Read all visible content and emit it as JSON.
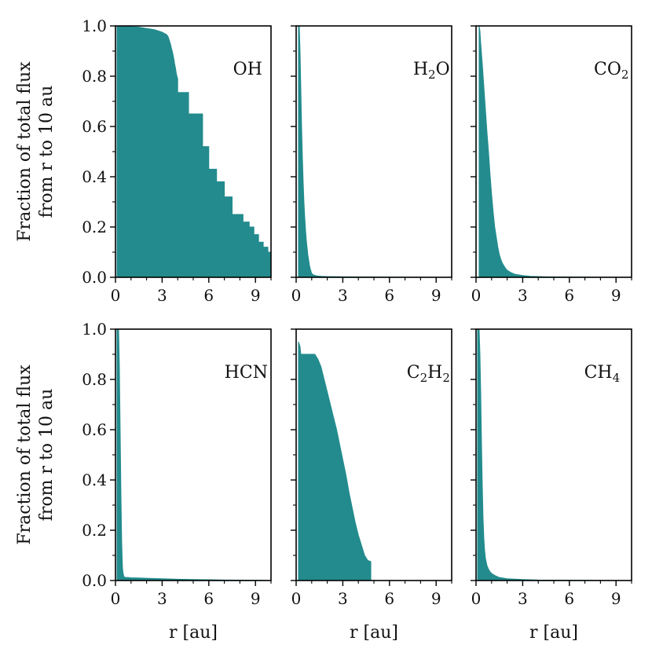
{
  "chart_data": {
    "type": "area",
    "fill_color": "#238b8d",
    "xlabel": "r [au]",
    "ylabel_lines": [
      "Fraction of total flux",
      "from r to 10 au"
    ],
    "xlim": [
      0,
      10
    ],
    "ylim": [
      0,
      1
    ],
    "xticks": [
      0,
      3,
      6,
      9
    ],
    "yticks": [
      0.0,
      0.2,
      0.4,
      0.6,
      0.8,
      1.0
    ],
    "ytick_labels": [
      "0.0",
      "0.2",
      "0.4",
      "0.6",
      "0.8",
      "1.0"
    ],
    "panels": [
      {
        "id": "oh",
        "label": [
          {
            "t": "OH"
          }
        ],
        "x": [
          0.1,
          0.1,
          1.5,
          2.0,
          2.5,
          3.0,
          3.3,
          3.4,
          3.45,
          3.5,
          3.55,
          3.6,
          3.65,
          3.7,
          3.75,
          3.8,
          3.85,
          3.9,
          3.95,
          4.0,
          4.0,
          4.7,
          4.7,
          5.6,
          5.6,
          6.0,
          6.0,
          6.5,
          6.5,
          7.0,
          7.0,
          7.5,
          7.5,
          8.2,
          8.2,
          8.6,
          8.6,
          8.9,
          8.9,
          9.2,
          9.2,
          9.5,
          9.5,
          9.8,
          9.8,
          10.0,
          10.0
        ],
        "y": [
          0.0,
          1.0,
          0.995,
          0.99,
          0.985,
          0.975,
          0.965,
          0.955,
          0.945,
          0.935,
          0.925,
          0.91,
          0.9,
          0.885,
          0.87,
          0.85,
          0.835,
          0.815,
          0.8,
          0.79,
          0.735,
          0.735,
          0.65,
          0.65,
          0.52,
          0.52,
          0.43,
          0.43,
          0.38,
          0.38,
          0.32,
          0.32,
          0.25,
          0.25,
          0.22,
          0.22,
          0.2,
          0.2,
          0.17,
          0.17,
          0.14,
          0.14,
          0.12,
          0.12,
          0.1,
          0.1,
          0.0
        ]
      },
      {
        "id": "h2o",
        "label": [
          {
            "t": "H"
          },
          {
            "t": "2",
            "sub": true
          },
          {
            "t": "O"
          }
        ],
        "x": [
          0.15,
          0.2,
          0.25,
          0.3,
          0.35,
          0.4,
          0.45,
          0.5,
          0.55,
          0.6,
          0.65,
          0.7,
          0.75,
          0.8,
          0.85,
          0.9,
          0.95,
          1.0,
          1.1,
          1.3,
          1.6,
          2.0,
          3.0,
          5.0,
          7.0,
          10.0,
          10.0
        ],
        "y": [
          1.0,
          1.0,
          0.9,
          0.75,
          0.6,
          0.48,
          0.38,
          0.3,
          0.24,
          0.19,
          0.15,
          0.12,
          0.09,
          0.07,
          0.05,
          0.035,
          0.025,
          0.015,
          0.01,
          0.006,
          0.004,
          0.003,
          0.002,
          0.001,
          0.0005,
          0.0,
          0.0
        ]
      },
      {
        "id": "co2",
        "label": [
          {
            "t": "CO"
          },
          {
            "t": "2",
            "sub": true
          }
        ],
        "x": [
          0.2,
          0.25,
          0.3,
          0.4,
          0.5,
          0.6,
          0.7,
          0.8,
          0.9,
          1.0,
          1.1,
          1.2,
          1.3,
          1.4,
          1.5,
          1.6,
          1.7,
          1.8,
          1.9,
          2.0,
          2.2,
          2.5,
          3.0,
          3.5,
          4.5,
          6.0,
          8.0,
          10.0,
          10.0
        ],
        "y": [
          1.0,
          0.98,
          0.93,
          0.85,
          0.76,
          0.67,
          0.58,
          0.5,
          0.41,
          0.33,
          0.26,
          0.2,
          0.16,
          0.12,
          0.09,
          0.07,
          0.055,
          0.045,
          0.035,
          0.028,
          0.02,
          0.012,
          0.007,
          0.004,
          0.002,
          0.001,
          0.0005,
          0.0,
          0.0
        ]
      },
      {
        "id": "hcn",
        "label": [
          {
            "t": "HCN"
          }
        ],
        "x": [
          0.1,
          0.2,
          0.25,
          0.3,
          0.35,
          0.4,
          0.45,
          0.5,
          0.55,
          0.6,
          0.7,
          0.8,
          1.0,
          1.5,
          2.0,
          3.0,
          4.0,
          5.0,
          6.0,
          7.0,
          8.0,
          9.0,
          10.0,
          10.0
        ],
        "y": [
          1.0,
          1.0,
          0.85,
          0.6,
          0.35,
          0.15,
          0.05,
          0.025,
          0.015,
          0.013,
          0.012,
          0.012,
          0.011,
          0.01,
          0.009,
          0.007,
          0.005,
          0.004,
          0.003,
          0.002,
          0.0015,
          0.001,
          0.0,
          0.0
        ]
      },
      {
        "id": "c2h2",
        "label": [
          {
            "t": "C"
          },
          {
            "t": "2",
            "sub": true
          },
          {
            "t": "H"
          },
          {
            "t": "2",
            "sub": true
          }
        ],
        "x": [
          0.15,
          0.15,
          0.25,
          0.3,
          1.2,
          1.4,
          1.6,
          1.8,
          2.0,
          2.2,
          2.4,
          2.6,
          2.8,
          3.0,
          3.2,
          3.4,
          3.6,
          3.8,
          4.0,
          4.2,
          4.4,
          4.6,
          4.8,
          4.8
        ],
        "y": [
          0.0,
          0.95,
          0.93,
          0.9,
          0.9,
          0.88,
          0.85,
          0.8,
          0.75,
          0.7,
          0.65,
          0.6,
          0.54,
          0.48,
          0.42,
          0.35,
          0.29,
          0.23,
          0.18,
          0.14,
          0.1,
          0.08,
          0.075,
          0.0
        ]
      },
      {
        "id": "ch4",
        "label": [
          {
            "t": "CH"
          },
          {
            "t": "4",
            "sub": true
          }
        ],
        "x": [
          0.1,
          0.2,
          0.25,
          0.3,
          0.35,
          0.4,
          0.45,
          0.5,
          0.55,
          0.6,
          0.7,
          0.8,
          0.9,
          1.0,
          1.2,
          1.5,
          2.0,
          3.0,
          4.0,
          6.0,
          8.0,
          10.0,
          10.0
        ],
        "y": [
          1.0,
          1.0,
          0.9,
          0.75,
          0.55,
          0.38,
          0.25,
          0.17,
          0.12,
          0.09,
          0.06,
          0.045,
          0.035,
          0.028,
          0.02,
          0.012,
          0.007,
          0.004,
          0.002,
          0.001,
          0.0005,
          0.0,
          0.0
        ]
      }
    ]
  }
}
